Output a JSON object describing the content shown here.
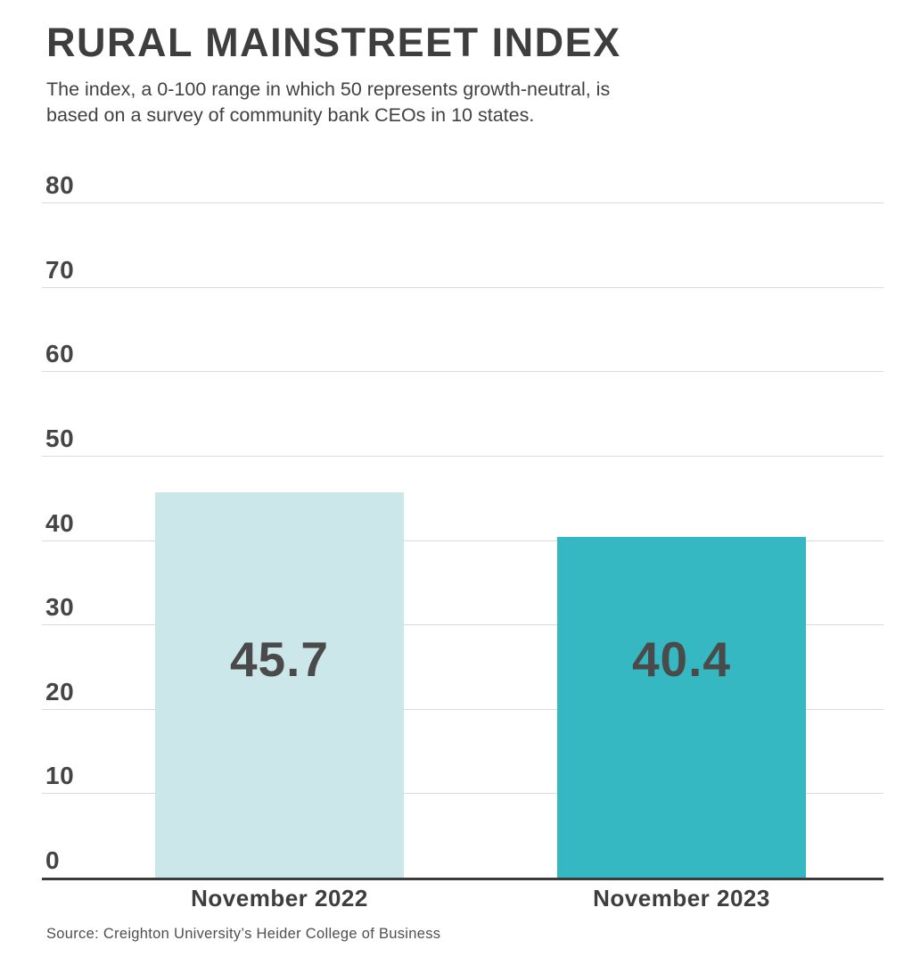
{
  "header": {
    "title": "RURAL MAINSTREET INDEX",
    "subtitle": "The index, a 0-100 range in which 50 represents growth-neutral, is based on a survey of community bank CEOs in 10 states.",
    "subtitle_lines": [
      "The index, a 0-100 range in which 50 represents growth-neutral, is",
      "based on a survey of community bank CEOs in 10 states."
    ]
  },
  "chart_data": {
    "type": "bar",
    "title": "RURAL MAINSTREET INDEX",
    "subtitle": "The index, a 0-100 range in which 50 represents growth-neutral, is based on a survey of community bank CEOs in 10 states.",
    "categories": [
      "November 2022",
      "November 2023"
    ],
    "values": [
      45.7,
      40.4
    ],
    "value_labels": [
      "45.7",
      "40.4"
    ],
    "bar_colors": [
      "#cbe7e9",
      "#35b8c2"
    ],
    "xlabel": "",
    "ylabel": "",
    "ylim": [
      0,
      80
    ],
    "ytick_interval": 10,
    "ytick_labels": [
      "0",
      "10",
      "20",
      "30",
      "40",
      "50",
      "60",
      "70",
      "80"
    ],
    "grid": true,
    "legend": false,
    "gridline_color": "#dadada",
    "axis_line_color": "#3b3b3b",
    "value_label_color": "#4a4a4a"
  },
  "footer": {
    "source": "Source: Creighton University’s Heider College of Business"
  }
}
